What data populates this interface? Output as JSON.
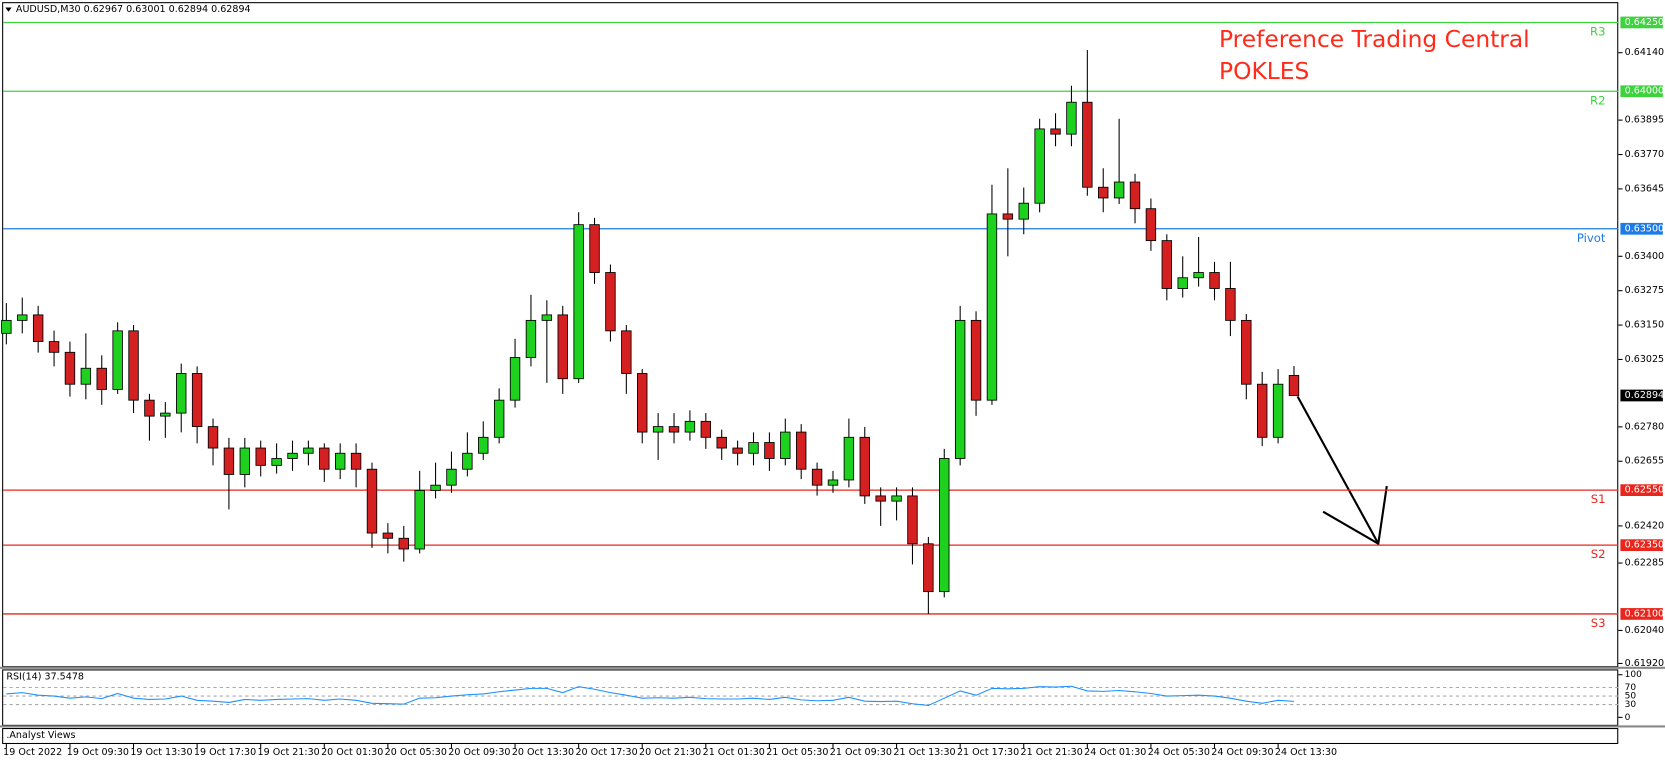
{
  "chart_data": {
    "type": "candlestick",
    "header": "AUDUSD,M30  0.62967 0.63001 0.62894 0.62894",
    "title": "Preference Trading Central",
    "subtitle": "POKLES",
    "title_color": "#ff2a1a",
    "up_color": "#1fd11f",
    "down_color": "#d42020",
    "open": [
      0.6312,
      0.63167,
      0.63187,
      0.6309,
      0.63051,
      0.62935,
      0.62993,
      0.62916,
      0.63129,
      0.62877,
      0.62819,
      0.6283,
      0.62974,
      0.62781,
      0.62703,
      0.62607,
      0.62703,
      0.6264,
      0.62665,
      0.62684,
      0.62703,
      0.62626,
      0.62684,
      0.62626,
      0.62394,
      0.62375,
      0.62336,
      0.62549,
      0.62568,
      0.62626,
      0.62684,
      0.62742,
      0.62877,
      0.63032,
      0.63167,
      0.63187,
      0.62955,
      0.63515,
      0.63341,
      0.63129,
      0.62974,
      0.62761,
      0.62781,
      0.62761,
      0.628,
      0.62742,
      0.62703,
      0.62684,
      0.62723,
      0.62665,
      0.62761,
      0.62626,
      0.62568,
      0.62587,
      0.62742,
      0.62529,
      0.6251,
      0.62529,
      0.62355,
      0.62181,
      0.62665,
      0.63167,
      0.62877,
      0.63554,
      0.63535,
      0.63593,
      0.63863,
      0.63844,
      0.6396,
      0.63651,
      0.63612,
      0.6367,
      0.63573,
      0.63457,
      0.63283,
      0.63322,
      0.63341,
      0.63283,
      0.63167,
      0.62935,
      0.62742,
      0.62967
    ],
    "high": [
      0.6323,
      0.6325,
      0.6322,
      0.6313,
      0.6309,
      0.6312,
      0.6304,
      0.6316,
      0.6315,
      0.629,
      0.6287,
      0.6301,
      0.63,
      0.6281,
      0.6274,
      0.6274,
      0.6273,
      0.6272,
      0.6273,
      0.6273,
      0.6272,
      0.6272,
      0.6272,
      0.6265,
      0.6243,
      0.6242,
      0.6262,
      0.6265,
      0.6269,
      0.6276,
      0.628,
      0.6292,
      0.631,
      0.6326,
      0.6324,
      0.6322,
      0.6356,
      0.6354,
      0.6337,
      0.6315,
      0.6299,
      0.6283,
      0.6283,
      0.6284,
      0.6283,
      0.6277,
      0.6273,
      0.6276,
      0.6276,
      0.6281,
      0.6279,
      0.6265,
      0.6262,
      0.6281,
      0.6278,
      0.6256,
      0.6256,
      0.6256,
      0.6238,
      0.627,
      0.6322,
      0.632,
      0.6366,
      0.6372,
      0.6365,
      0.639,
      0.6392,
      0.6402,
      0.6415,
      0.6372,
      0.639,
      0.637,
      0.6361,
      0.6348,
      0.634,
      0.6347,
      0.6338,
      0.6338,
      0.6319,
      0.6298,
      0.6299,
      0.63001
    ],
    "low": [
      0.6308,
      0.6312,
      0.6305,
      0.63,
      0.6289,
      0.6288,
      0.6286,
      0.629,
      0.6283,
      0.6273,
      0.6274,
      0.6276,
      0.6272,
      0.6264,
      0.6248,
      0.6256,
      0.626,
      0.6261,
      0.6262,
      0.6264,
      0.6258,
      0.6259,
      0.6256,
      0.6234,
      0.6232,
      0.6229,
      0.6232,
      0.6252,
      0.6254,
      0.626,
      0.6266,
      0.6272,
      0.6285,
      0.63,
      0.6294,
      0.629,
      0.6294,
      0.633,
      0.6309,
      0.629,
      0.6272,
      0.6266,
      0.6272,
      0.6273,
      0.627,
      0.6266,
      0.6264,
      0.6264,
      0.6262,
      0.6264,
      0.6259,
      0.6253,
      0.6254,
      0.6256,
      0.625,
      0.6242,
      0.6244,
      0.6228,
      0.621,
      0.6216,
      0.6264,
      0.6282,
      0.6286,
      0.634,
      0.6348,
      0.6356,
      0.638,
      0.638,
      0.6362,
      0.6356,
      0.6359,
      0.6352,
      0.6342,
      0.6324,
      0.6325,
      0.6329,
      0.6324,
      0.6311,
      0.6288,
      0.6271,
      0.6272,
      0.62894
    ],
    "close": [
      0.63167,
      0.63187,
      0.6309,
      0.63051,
      0.62935,
      0.62993,
      0.62916,
      0.63129,
      0.62877,
      0.62819,
      0.6283,
      0.62974,
      0.62781,
      0.62703,
      0.62607,
      0.62703,
      0.6264,
      0.62665,
      0.62684,
      0.62703,
      0.62626,
      0.62684,
      0.62626,
      0.62394,
      0.62375,
      0.62336,
      0.62549,
      0.62568,
      0.62626,
      0.62684,
      0.62742,
      0.62877,
      0.63032,
      0.63167,
      0.63187,
      0.62955,
      0.63515,
      0.63341,
      0.63129,
      0.62974,
      0.62761,
      0.62781,
      0.62761,
      0.628,
      0.62742,
      0.62703,
      0.62684,
      0.62723,
      0.62665,
      0.62761,
      0.62626,
      0.62568,
      0.62587,
      0.62742,
      0.62529,
      0.6251,
      0.62529,
      0.62355,
      0.62181,
      0.62665,
      0.63167,
      0.62877,
      0.63554,
      0.63535,
      0.63593,
      0.63863,
      0.63844,
      0.6396,
      0.63651,
      0.63612,
      0.6367,
      0.63573,
      0.63457,
      0.63283,
      0.63322,
      0.63341,
      0.63283,
      0.63167,
      0.62935,
      0.62742,
      0.62935,
      0.62894
    ],
    "xlim": [
      -0.2,
      101.4
    ],
    "xticks": [
      {
        "value": 0,
        "label": "19 Oct 2022"
      },
      {
        "value": 4,
        "label": "19 Oct 09:30"
      },
      {
        "value": 8,
        "label": "19 Oct 13:30"
      },
      {
        "value": 12,
        "label": "19 Oct 17:30"
      },
      {
        "value": 16,
        "label": "19 Oct 21:30"
      },
      {
        "value": 20,
        "label": "20 Oct 01:30"
      },
      {
        "value": 24,
        "label": "20 Oct 05:30"
      },
      {
        "value": 28,
        "label": "20 Oct 09:30"
      },
      {
        "value": 32,
        "label": "20 Oct 13:30"
      },
      {
        "value": 36,
        "label": "20 Oct 17:30"
      },
      {
        "value": 40,
        "label": "20 Oct 21:30"
      },
      {
        "value": 44,
        "label": "21 Oct 01:30"
      },
      {
        "value": 48,
        "label": "21 Oct 05:30"
      },
      {
        "value": 52,
        "label": "21 Oct 09:30"
      },
      {
        "value": 56,
        "label": "21 Oct 13:30"
      },
      {
        "value": 60,
        "label": "21 Oct 17:30"
      },
      {
        "value": 64,
        "label": "21 Oct 21:30"
      },
      {
        "value": 68,
        "label": "24 Oct 01:30"
      },
      {
        "value": 72,
        "label": "24 Oct 05:30"
      },
      {
        "value": 76,
        "label": "24 Oct 09:30"
      },
      {
        "value": 80,
        "label": "24 Oct 13:30"
      }
    ],
    "ylim": [
      0.6191,
      0.6432
    ],
    "yticks": [
      {
        "value": 0.6414,
        "label": "0.64140"
      },
      {
        "value": 0.63895,
        "label": "0.63895"
      },
      {
        "value": 0.6377,
        "label": "0.63770"
      },
      {
        "value": 0.63645,
        "label": "0.63645"
      },
      {
        "value": 0.634,
        "label": "0.63400"
      },
      {
        "value": 0.63275,
        "label": "0.63275"
      },
      {
        "value": 0.6315,
        "label": "0.63150"
      },
      {
        "value": 0.63025,
        "label": "0.63025"
      },
      {
        "value": 0.6278,
        "label": "0.62780"
      },
      {
        "value": 0.62655,
        "label": "0.62655"
      },
      {
        "value": 0.6242,
        "label": "0.62420"
      },
      {
        "value": 0.62285,
        "label": "0.62285"
      },
      {
        "value": 0.6204,
        "label": "0.62040"
      },
      {
        "value": 0.6192,
        "label": "0.61920"
      }
    ],
    "levels": [
      {
        "name": "R3",
        "value": 0.6425,
        "label": "0.64250",
        "color": "#3fd23f"
      },
      {
        "name": "R2",
        "value": 0.64,
        "label": "0.64000",
        "color": "#3fd23f"
      },
      {
        "name": "Pivot",
        "value": 0.635,
        "label": "0.63500",
        "color": "#1e7be6"
      },
      {
        "name": "S1",
        "value": 0.6255,
        "label": "0.62550",
        "color": "#e8261e"
      },
      {
        "name": "S2",
        "value": 0.6235,
        "label": "0.62350",
        "color": "#e8261e"
      },
      {
        "name": "S3",
        "value": 0.621,
        "label": "0.62100",
        "color": "#e8261e"
      }
    ],
    "current_price": {
      "value": 0.62894,
      "label": "0.62894"
    },
    "indicator": {
      "type": "line",
      "title": "RSI(14) 37.5478",
      "color": "#1e90ff",
      "ylim": [
        0,
        100
      ],
      "yticks": [
        100,
        70,
        50,
        30,
        0
      ],
      "values": [
        55,
        58,
        52,
        50,
        45,
        48,
        44,
        56,
        45,
        42,
        43,
        50,
        40,
        38,
        35,
        42,
        40,
        42,
        43,
        44,
        40,
        43,
        40,
        33,
        32,
        31,
        45,
        46,
        50,
        53,
        55,
        60,
        64,
        68,
        68,
        58,
        72,
        66,
        58,
        52,
        45,
        46,
        45,
        47,
        44,
        43,
        43,
        45,
        42,
        47,
        41,
        39,
        40,
        47,
        38,
        37,
        38,
        32,
        28,
        45,
        62,
        52,
        68,
        67,
        68,
        72,
        71,
        73,
        62,
        61,
        63,
        60,
        56,
        50,
        51,
        52,
        50,
        45,
        38,
        33,
        40,
        37.5478
      ]
    },
    "panel_label": ".Analyst Views"
  }
}
